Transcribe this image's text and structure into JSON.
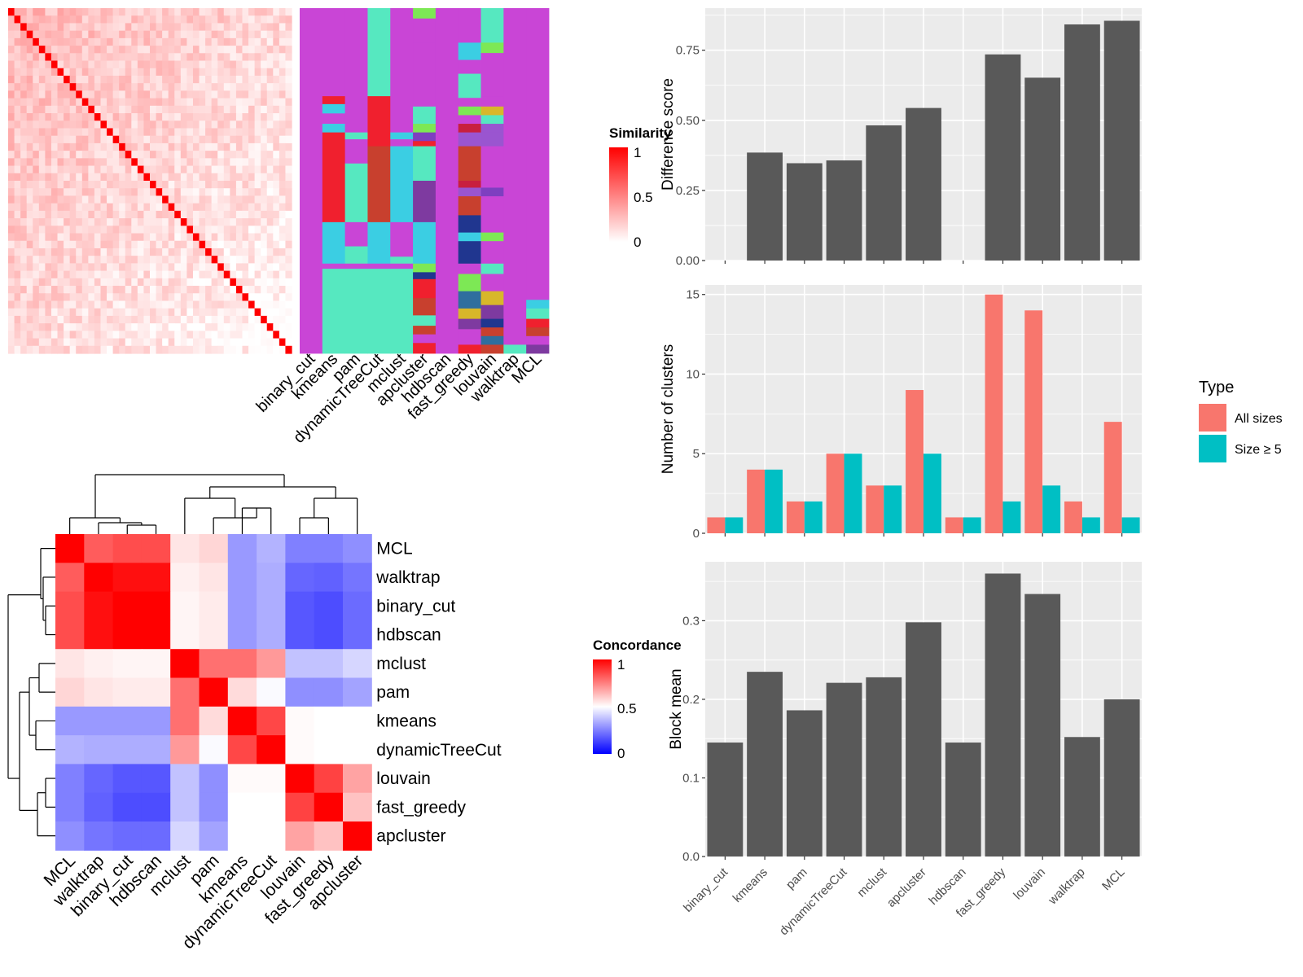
{
  "colors": {
    "panel_bg": "#EBEBEB",
    "grid": "#FFFFFF",
    "bar_dark": "#595959",
    "type_all": "#F8766D",
    "type_size5": "#00BFC4",
    "sim_low": "#FFFFFF",
    "sim_high": "#FF0000",
    "conc_low": "#0000FF",
    "conc_mid": "#FFFFFF",
    "conc_high": "#FF0000",
    "annot_default": "#C945D6"
  },
  "similarity_legend": {
    "title": "Similarity",
    "ticks": [
      "1",
      "0.5",
      "0"
    ]
  },
  "concordance_legend": {
    "title": "Concordance",
    "ticks": [
      "1",
      "0.5",
      "0"
    ]
  },
  "cluster_methods": [
    "binary_cut",
    "kmeans",
    "pam",
    "dynamicTreeCut",
    "mclust",
    "apcluster",
    "hdbscan",
    "fast_greedy",
    "louvain",
    "walktrap",
    "MCL"
  ],
  "concordance_order": [
    "MCL",
    "walktrap",
    "binary_cut",
    "hdbscan",
    "mclust",
    "pam",
    "kmeans",
    "dynamicTreeCut",
    "louvain",
    "fast_greedy",
    "apcluster"
  ],
  "concordance_matrix": [
    [
      1.0,
      0.82,
      0.85,
      0.85,
      0.55,
      0.58,
      0.3,
      0.35,
      0.25,
      0.25,
      0.28
    ],
    [
      0.82,
      1.0,
      0.97,
      0.97,
      0.53,
      0.55,
      0.3,
      0.34,
      0.2,
      0.19,
      0.23
    ],
    [
      0.85,
      0.97,
      1.0,
      1.0,
      0.52,
      0.54,
      0.3,
      0.34,
      0.17,
      0.15,
      0.21
    ],
    [
      0.85,
      0.97,
      1.0,
      1.0,
      0.52,
      0.54,
      0.3,
      0.34,
      0.17,
      0.15,
      0.21
    ],
    [
      0.55,
      0.53,
      0.52,
      0.52,
      1.0,
      0.78,
      0.78,
      0.7,
      0.38,
      0.38,
      0.42
    ],
    [
      0.58,
      0.55,
      0.54,
      0.54,
      0.78,
      1.0,
      0.57,
      0.49,
      0.28,
      0.28,
      0.32
    ],
    [
      0.3,
      0.3,
      0.3,
      0.3,
      0.78,
      0.57,
      1.0,
      0.86,
      0.51,
      0.5,
      0.5
    ],
    [
      0.35,
      0.34,
      0.34,
      0.34,
      0.7,
      0.49,
      0.86,
      1.0,
      0.51,
      0.5,
      0.5
    ],
    [
      0.25,
      0.2,
      0.17,
      0.17,
      0.38,
      0.28,
      0.51,
      0.51,
      1.0,
      0.87,
      0.68
    ],
    [
      0.25,
      0.19,
      0.15,
      0.15,
      0.38,
      0.28,
      0.5,
      0.5,
      0.87,
      1.0,
      0.62
    ],
    [
      0.28,
      0.23,
      0.21,
      0.21,
      0.42,
      0.32,
      0.5,
      0.5,
      0.68,
      0.62,
      1.0
    ]
  ],
  "chart_data": [
    {
      "type": "bar",
      "categories": [
        "binary_cut",
        "kmeans",
        "pam",
        "dynamicTreeCut",
        "mclust",
        "apcluster",
        "hdbscan",
        "fast_greedy",
        "louvain",
        "walktrap",
        "MCL"
      ],
      "values": [
        0,
        0.385,
        0.347,
        0.357,
        0.482,
        0.544,
        0,
        0.735,
        0.652,
        0.842,
        0.855
      ],
      "xlabel": "",
      "ylabel": "Difference score",
      "ylim": [
        0,
        0.9
      ],
      "yticks": [
        "0.00",
        "0.25",
        "0.50",
        "0.75"
      ],
      "grid": true
    },
    {
      "type": "bar",
      "categories": [
        "binary_cut",
        "kmeans",
        "pam",
        "dynamicTreeCut",
        "mclust",
        "apcluster",
        "hdbscan",
        "fast_greedy",
        "louvain",
        "walktrap",
        "MCL"
      ],
      "series": [
        {
          "name": "All sizes",
          "values": [
            1,
            4,
            2,
            5,
            3,
            9,
            1,
            15,
            14,
            2,
            7
          ]
        },
        {
          "name": "Size ≥ 5",
          "values": [
            1,
            4,
            2,
            5,
            3,
            5,
            1,
            2,
            3,
            1,
            1
          ]
        }
      ],
      "xlabel": "",
      "ylabel": "Number of clusters",
      "ylim": [
        0,
        15.6
      ],
      "yticks": [
        "0",
        "5",
        "10",
        "15"
      ],
      "legend_title": "Type",
      "legend_position": "right",
      "grid": true
    },
    {
      "type": "bar",
      "categories": [
        "binary_cut",
        "kmeans",
        "pam",
        "dynamicTreeCut",
        "mclust",
        "apcluster",
        "hdbscan",
        "fast_greedy",
        "louvain",
        "walktrap",
        "MCL"
      ],
      "values": [
        0.145,
        0.235,
        0.186,
        0.221,
        0.228,
        0.298,
        0.145,
        0.36,
        0.334,
        0.152,
        0.2
      ],
      "xlabel": "",
      "ylabel": "Block mean",
      "ylim": [
        0,
        0.375
      ],
      "yticks": [
        "0.0",
        "0.1",
        "0.2",
        "0.3"
      ],
      "grid": true
    }
  ]
}
